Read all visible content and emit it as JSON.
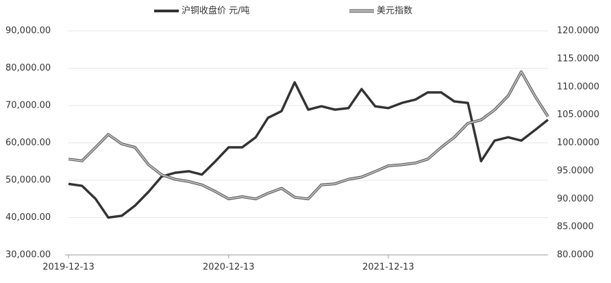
{
  "chart_data": {
    "type": "line",
    "x": [
      "2019-12-13",
      "2020-01-13",
      "2020-02-13",
      "2020-03-13",
      "2020-04-13",
      "2020-05-13",
      "2020-06-13",
      "2020-07-13",
      "2020-08-13",
      "2020-09-13",
      "2020-10-13",
      "2020-11-13",
      "2020-12-13",
      "2021-01-13",
      "2021-02-13",
      "2021-03-13",
      "2021-04-13",
      "2021-05-13",
      "2021-06-13",
      "2021-07-13",
      "2021-08-13",
      "2021-09-13",
      "2021-10-13",
      "2021-11-13",
      "2021-12-13",
      "2022-01-13",
      "2022-02-13",
      "2022-03-13",
      "2022-04-13",
      "2022-05-13",
      "2022-06-13",
      "2022-07-13",
      "2022-08-13",
      "2022-09-13",
      "2022-10-13",
      "2022-11-13",
      "2022-12-13"
    ],
    "xlim": [
      "2019-12-13",
      "2022-12-13"
    ],
    "xticks": [
      "2019-12-13",
      "2020-12-13",
      "2021-12-13"
    ],
    "series": [
      {
        "name": "沪铜收盘价 元/吨",
        "color": "#333333",
        "values": [
          49000,
          48500,
          45000,
          40000,
          40500,
          43200,
          46900,
          51000,
          52000,
          52400,
          51500,
          55100,
          58800,
          58800,
          61500,
          66700,
          68500,
          76200,
          68900,
          69800,
          68900,
          69300,
          74400,
          69800,
          69300,
          70700,
          71600,
          73500,
          73500,
          71100,
          70700,
          55100,
          60600,
          61500,
          60600,
          63400,
          66200
        ]
      },
      {
        "name": "美元指数",
        "color": "#bbbbbb",
        "axis": "y2",
        "values": [
          97.1,
          96.8,
          99.2,
          101.5,
          99.8,
          99.2,
          96.1,
          94.3,
          93.5,
          93.1,
          92.5,
          91.3,
          90.0,
          90.4,
          90.0,
          91.0,
          91.9,
          90.3,
          90.0,
          92.5,
          92.7,
          93.5,
          93.9,
          94.9,
          95.9,
          96.1,
          96.4,
          97.1,
          99.2,
          101.0,
          103.5,
          104.1,
          105.9,
          108.4,
          112.7,
          108.4,
          104.7
        ]
      }
    ],
    "ylim": [
      30000,
      90000
    ],
    "yticks": [
      {
        "value": 30000,
        "label": "30,000.00"
      },
      {
        "value": 40000,
        "label": "40,000.00"
      },
      {
        "value": 50000,
        "label": "50,000.00"
      },
      {
        "value": 60000,
        "label": "60,000.00"
      },
      {
        "value": 70000,
        "label": "70,000.00"
      },
      {
        "value": 80000,
        "label": "80,000.00"
      },
      {
        "value": 90000,
        "label": "90,000.00"
      }
    ],
    "y2lim": [
      80,
      120
    ],
    "y2ticks": [
      {
        "value": 80,
        "label": "80.0000"
      },
      {
        "value": 85,
        "label": "85.0000"
      },
      {
        "value": 90,
        "label": "90.0000"
      },
      {
        "value": 95,
        "label": "95.0000"
      },
      {
        "value": 100,
        "label": "100.0000"
      },
      {
        "value": 105,
        "label": "105.0000"
      },
      {
        "value": 110,
        "label": "110.0000"
      },
      {
        "value": 115,
        "label": "115.0000"
      },
      {
        "value": 120,
        "label": "120.0000"
      }
    ],
    "grid": true
  }
}
